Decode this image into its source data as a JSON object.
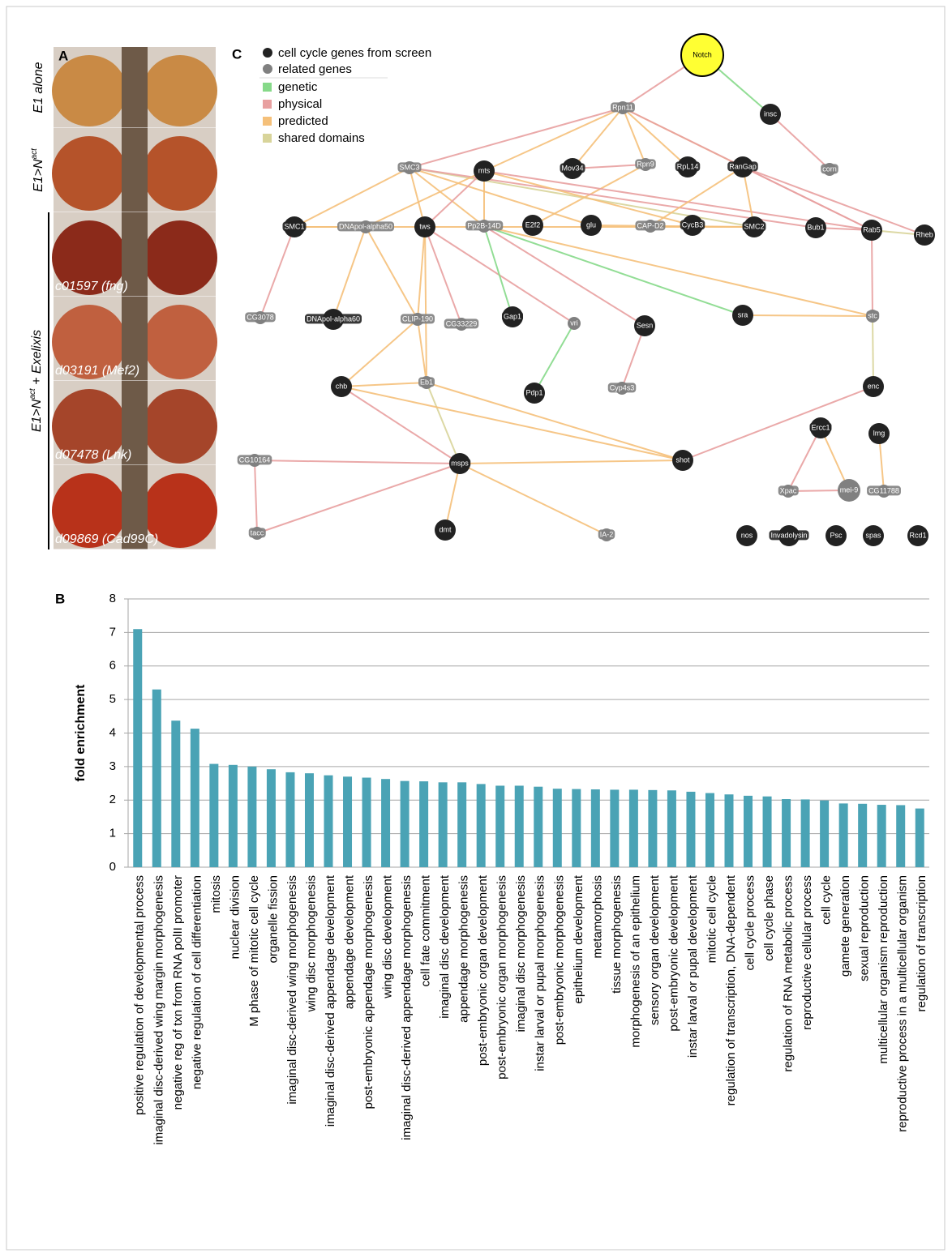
{
  "panel_a": {
    "label": "A",
    "conditions": [
      {
        "text": "E1 alone"
      },
      {
        "text": "E1>N",
        "sup": "act"
      }
    ],
    "group": {
      "text": "E1>N",
      "sup": "act",
      "after": " + Exelixis"
    },
    "alleles": [
      "c01597 (fng)",
      "d03191 (Mef2)",
      "d07478 (Lnk)",
      "d09869 (Cad99C)"
    ]
  },
  "panel_c": {
    "label": "C",
    "node_legend": [
      {
        "label": "cell cycle genes from screen",
        "color": "#222222"
      },
      {
        "label": "related genes",
        "color": "#808080"
      }
    ],
    "edge_legend": [
      {
        "label": "genetic",
        "color": "#86d989"
      },
      {
        "label": "physical",
        "color": "#e8a0a0"
      },
      {
        "label": "predicted",
        "color": "#f5c07a"
      },
      {
        "label": "shared domains",
        "color": "#d8d49a"
      }
    ],
    "nodes": [
      {
        "label": "Notch",
        "group": "cell cycle genes from screen",
        "color": "#ffff33"
      },
      {
        "label": "insc",
        "group": "cell cycle genes from screen"
      },
      {
        "label": "corn",
        "group": "related genes"
      },
      {
        "label": "Rpn11",
        "group": "related genes"
      },
      {
        "label": "Rpn9",
        "group": "related genes"
      },
      {
        "label": "Mov34",
        "group": "cell cycle genes from screen"
      },
      {
        "label": "RpL14",
        "group": "cell cycle genes from screen"
      },
      {
        "label": "RanGap",
        "group": "cell cycle genes from screen"
      },
      {
        "label": "SMC3",
        "group": "related genes"
      },
      {
        "label": "mts",
        "group": "cell cycle genes from screen"
      },
      {
        "label": "SMC1",
        "group": "cell cycle genes from screen"
      },
      {
        "label": "DNApol-alpha50",
        "group": "related genes"
      },
      {
        "label": "tws",
        "group": "cell cycle genes from screen"
      },
      {
        "label": "Pp2B-14D",
        "group": "related genes"
      },
      {
        "label": "E2f2",
        "group": "cell cycle genes from screen"
      },
      {
        "label": "glu",
        "group": "cell cycle genes from screen"
      },
      {
        "label": "CAP-D2",
        "group": "related genes"
      },
      {
        "label": "CycB3",
        "group": "cell cycle genes from screen"
      },
      {
        "label": "SMC2",
        "group": "cell cycle genes from screen"
      },
      {
        "label": "Bub1",
        "group": "cell cycle genes from screen"
      },
      {
        "label": "Rab5",
        "group": "cell cycle genes from screen"
      },
      {
        "label": "Rheb",
        "group": "cell cycle genes from screen"
      },
      {
        "label": "CG3078",
        "group": "related genes"
      },
      {
        "label": "DNApol-alpha60",
        "group": "cell cycle genes from screen"
      },
      {
        "label": "CLIP-190",
        "group": "related genes"
      },
      {
        "label": "CG33229",
        "group": "related genes"
      },
      {
        "label": "Gap1",
        "group": "cell cycle genes from screen"
      },
      {
        "label": "vri",
        "group": "related genes"
      },
      {
        "label": "Sesn",
        "group": "cell cycle genes from screen"
      },
      {
        "label": "sra",
        "group": "cell cycle genes from screen"
      },
      {
        "label": "stc",
        "group": "related genes"
      },
      {
        "label": "chb",
        "group": "cell cycle genes from screen"
      },
      {
        "label": "Eb1",
        "group": "related genes"
      },
      {
        "label": "Pdp1",
        "group": "cell cycle genes from screen"
      },
      {
        "label": "Cyp4s3",
        "group": "related genes"
      },
      {
        "label": "enc",
        "group": "cell cycle genes from screen"
      },
      {
        "label": "Ercc1",
        "group": "cell cycle genes from screen"
      },
      {
        "label": "lmg",
        "group": "cell cycle genes from screen"
      },
      {
        "label": "CG10164",
        "group": "related genes"
      },
      {
        "label": "msps",
        "group": "cell cycle genes from screen"
      },
      {
        "label": "shot",
        "group": "cell cycle genes from screen"
      },
      {
        "label": "Xpac",
        "group": "related genes"
      },
      {
        "label": "mei-9",
        "group": "related genes"
      },
      {
        "label": "CG11788",
        "group": "related genes"
      },
      {
        "label": "tacc",
        "group": "related genes"
      },
      {
        "label": "dmt",
        "group": "cell cycle genes from screen"
      },
      {
        "label": "IA-2",
        "group": "related genes"
      },
      {
        "label": "nos",
        "group": "cell cycle genes from screen"
      },
      {
        "label": "Invadolysin",
        "group": "cell cycle genes from screen"
      },
      {
        "label": "Psc",
        "group": "cell cycle genes from screen"
      },
      {
        "label": "spas",
        "group": "cell cycle genes from screen"
      },
      {
        "label": "Rcd1",
        "group": "cell cycle genes from screen"
      }
    ],
    "edges": [
      {
        "source": "Notch",
        "target": "Rpn11",
        "type": "physical"
      },
      {
        "source": "Notch",
        "target": "insc",
        "type": "genetic"
      },
      {
        "source": "insc",
        "target": "corn",
        "type": "physical"
      },
      {
        "source": "Rpn11",
        "target": "SMC3",
        "type": "physical"
      },
      {
        "source": "Rpn11",
        "target": "mts",
        "type": "predicted"
      },
      {
        "source": "Rpn11",
        "target": "Mov34",
        "type": "predicted"
      },
      {
        "source": "Rpn11",
        "target": "Rpn9",
        "type": "predicted"
      },
      {
        "source": "Rpn11",
        "target": "RpL14",
        "type": "predicted"
      },
      {
        "source": "Rpn11",
        "target": "RanGap",
        "type": "predicted"
      },
      {
        "source": "Rpn11",
        "target": "Rab5",
        "type": "physical"
      },
      {
        "source": "Mov34",
        "target": "Rpn9",
        "type": "physical"
      },
      {
        "source": "Rpn9",
        "target": "E2f2",
        "type": "predicted"
      },
      {
        "source": "SMC3",
        "target": "SMC1",
        "type": "predicted"
      },
      {
        "source": "SMC3",
        "target": "tws",
        "type": "predicted"
      },
      {
        "source": "SMC3",
        "target": "SMC2",
        "type": "shared domains"
      },
      {
        "source": "SMC3",
        "target": "Bub1",
        "type": "physical"
      },
      {
        "source": "SMC3",
        "target": "glu",
        "type": "predicted"
      },
      {
        "source": "SMC3",
        "target": "Pp2B-14D",
        "type": "predicted"
      },
      {
        "source": "mts",
        "target": "tws",
        "type": "physical"
      },
      {
        "source": "mts",
        "target": "Pp2B-14D",
        "type": "predicted"
      },
      {
        "source": "mts",
        "target": "DNApol-alpha50",
        "type": "predicted"
      },
      {
        "source": "mts",
        "target": "Rab5",
        "type": "physical"
      },
      {
        "source": "mts",
        "target": "CycB3",
        "type": "predicted"
      },
      {
        "source": "RanGap",
        "target": "CAP-D2",
        "type": "predicted"
      },
      {
        "source": "RanGap",
        "target": "SMC2",
        "type": "predicted"
      },
      {
        "source": "RanGap",
        "target": "Rab5",
        "type": "physical"
      },
      {
        "source": "RanGap",
        "target": "Rheb",
        "type": "physical"
      },
      {
        "source": "SMC1",
        "target": "DNApol-alpha50",
        "type": "predicted"
      },
      {
        "source": "SMC1",
        "target": "SMC2",
        "type": "predicted"
      },
      {
        "source": "SMC1",
        "target": "CG3078",
        "type": "physical"
      },
      {
        "source": "DNApol-alpha50",
        "target": "DNApol-alpha60",
        "type": "predicted"
      },
      {
        "source": "DNApol-alpha50",
        "target": "CLIP-190",
        "type": "predicted"
      },
      {
        "source": "tws",
        "target": "CLIP-190",
        "type": "predicted"
      },
      {
        "source": "tws",
        "target": "CG33229",
        "type": "physical"
      },
      {
        "source": "tws",
        "target": "vri",
        "type": "physical"
      },
      {
        "source": "tws",
        "target": "Eb1",
        "type": "predicted"
      },
      {
        "source": "Pp2B-14D",
        "target": "Gap1",
        "type": "genetic"
      },
      {
        "source": "Pp2B-14D",
        "target": "sra",
        "type": "genetic"
      },
      {
        "source": "Pp2B-14D",
        "target": "Sesn",
        "type": "physical"
      },
      {
        "source": "Pp2B-14D",
        "target": "stc",
        "type": "predicted"
      },
      {
        "source": "glu",
        "target": "SMC2",
        "type": "predicted"
      },
      {
        "source": "Bub1",
        "target": "Rab5",
        "type": "physical"
      },
      {
        "source": "Rab5",
        "target": "Rheb",
        "type": "shared domains"
      },
      {
        "source": "Rab5",
        "target": "stc",
        "type": "physical"
      },
      {
        "source": "sra",
        "target": "stc",
        "type": "predicted"
      },
      {
        "source": "stc",
        "target": "enc",
        "type": "shared domains"
      },
      {
        "source": "enc",
        "target": "shot",
        "type": "physical"
      },
      {
        "source": "vri",
        "target": "Pdp1",
        "type": "genetic"
      },
      {
        "source": "Sesn",
        "target": "Cyp4s3",
        "type": "physical"
      },
      {
        "source": "CLIP-190",
        "target": "chb",
        "type": "predicted"
      },
      {
        "source": "CLIP-190",
        "target": "Eb1",
        "type": "predicted"
      },
      {
        "source": "chb",
        "target": "Eb1",
        "type": "predicted"
      },
      {
        "source": "chb",
        "target": "msps",
        "type": "physical"
      },
      {
        "source": "Eb1",
        "target": "msps",
        "type": "shared domains"
      },
      {
        "source": "Eb1",
        "target": "shot",
        "type": "predicted"
      },
      {
        "source": "chb",
        "target": "shot",
        "type": "predicted"
      },
      {
        "source": "msps",
        "target": "CG10164",
        "type": "physical"
      },
      {
        "source": "msps",
        "target": "tacc",
        "type": "physical"
      },
      {
        "source": "msps",
        "target": "dmt",
        "type": "predicted"
      },
      {
        "source": "msps",
        "target": "IA-2",
        "type": "predicted"
      },
      {
        "source": "msps",
        "target": "shot",
        "type": "predicted"
      },
      {
        "source": "CG10164",
        "target": "tacc",
        "type": "physical"
      },
      {
        "source": "Ercc1",
        "target": "Xpac",
        "type": "physical"
      },
      {
        "source": "Ercc1",
        "target": "mei-9",
        "type": "predicted"
      },
      {
        "source": "Xpac",
        "target": "mei-9",
        "type": "physical"
      },
      {
        "source": "lmg",
        "target": "CG11788",
        "type": "predicted"
      }
    ]
  },
  "chart_data": {
    "type": "bar",
    "panel_label": "B",
    "y_label": "fold enrichment",
    "categories": [
      "positive regulation of developmental process",
      "imaginal disc-derived wing margin morphogenesis",
      "negative reg of txn from RNA polII promoter",
      "negative regulation of cell differentiation",
      "mitosis",
      "nuclear division",
      "M phase of mitotic cell cycle",
      "organelle fission",
      "imaginal disc-derived wing morphogenesis",
      "wing disc morphogenesis",
      "imaginal disc-derived appendage development",
      "appendage development",
      "post-embryonic appendage morphogenesis",
      "wing disc development",
      "imaginal disc-derived appendage morphogenesis",
      "cell fate commitment",
      "imaginal disc development",
      "appendage morphogenesis",
      "post-embryonic organ development",
      "post-embryonic organ morphogenesis",
      "imaginal disc morphogenesis",
      "instar larval or pupal morphogenesis",
      "post-embryonic morphogenesis",
      "epithelium development",
      "metamorphosis",
      "tissue morphogenesis",
      "morphogenesis of an epithelium",
      "sensory organ development",
      "post-embryonic development",
      "instar larval or pupal development",
      "mitotic cell cycle",
      "regulation of transcription, DNA-dependent",
      "cell cycle process",
      "cell cycle phase",
      "regulation of RNA metabolic process",
      "reproductive cellular process",
      "cell cycle",
      "gamete generation",
      "sexual reproduction",
      "multicellular organism reproduction",
      "reproductive process in a multicellular organism",
      "regulation of transcription"
    ],
    "values": [
      7.1,
      5.3,
      4.37,
      4.13,
      3.08,
      3.05,
      3.0,
      2.92,
      2.83,
      2.8,
      2.74,
      2.7,
      2.67,
      2.63,
      2.57,
      2.56,
      2.53,
      2.53,
      2.48,
      2.43,
      2.43,
      2.4,
      2.34,
      2.33,
      2.32,
      2.31,
      2.31,
      2.3,
      2.29,
      2.25,
      2.21,
      2.17,
      2.13,
      2.11,
      2.03,
      2.02,
      1.99,
      1.9,
      1.89,
      1.86,
      1.85,
      1.75
    ],
    "color": "#4aa3b5",
    "ylim": [
      0,
      8
    ],
    "yticks": [
      0,
      1,
      2,
      3,
      4,
      5,
      6,
      7,
      8
    ],
    "grid": true
  }
}
